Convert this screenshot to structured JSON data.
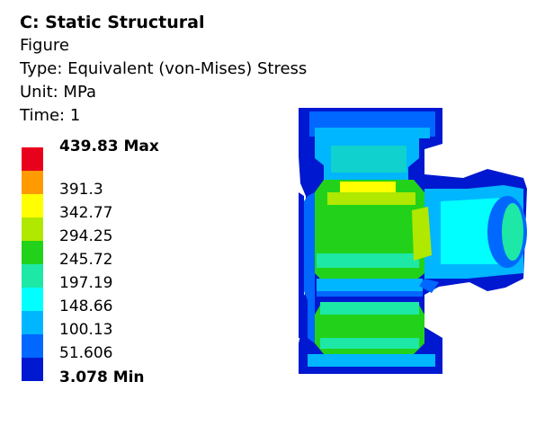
{
  "header": {
    "title": "C: Static Structural",
    "subtitle": "Figure",
    "type": "Type: Equivalent (von-Mises) Stress",
    "unit": "Unit: MPa",
    "time": "Time: 1"
  },
  "legend": {
    "entries": [
      {
        "label": "439.83 Max",
        "color": "#e8001c",
        "bold": true
      },
      {
        "label": "391.3",
        "color": "#ff9a00",
        "bold": false
      },
      {
        "label": "342.77",
        "color": "#ffff00",
        "bold": false
      },
      {
        "label": "294.25",
        "color": "#b0e800",
        "bold": false
      },
      {
        "label": "245.72",
        "color": "#22d21a",
        "bold": false
      },
      {
        "label": "197.19",
        "color": "#1ee8a5",
        "bold": false
      },
      {
        "label": "148.66",
        "color": "#00ffff",
        "bold": false
      },
      {
        "label": "100.13",
        "color": "#00b6ff",
        "bold": false
      },
      {
        "label": "51.606",
        "color": "#0068ff",
        "bold": false
      },
      {
        "label": "3.078 Min",
        "color": "#0018d0",
        "bold": true
      }
    ]
  },
  "colors": {
    "deep_blue": "#0018d0",
    "blue": "#0068ff",
    "light_blue": "#00b6ff",
    "cyan": "#00ffff",
    "aqua": "#1ee8a5",
    "green": "#22d21a",
    "yellow_green": "#b0e800",
    "yellow": "#ffff00"
  }
}
